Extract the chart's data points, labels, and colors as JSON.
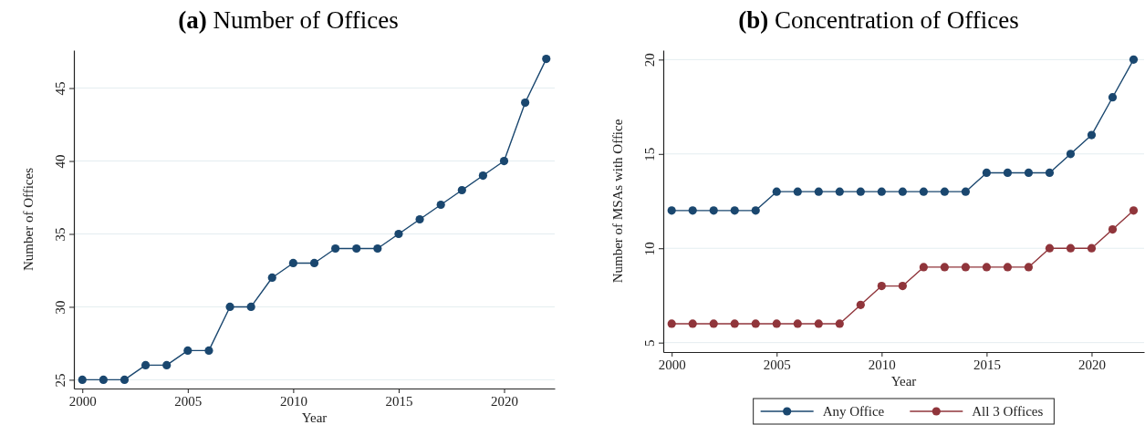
{
  "chart_data": [
    {
      "type": "line",
      "title": "(a) Number of Offices",
      "xlabel": "Year",
      "ylabel": "Number of Offices",
      "x": [
        2000,
        2001,
        2002,
        2003,
        2004,
        2005,
        2006,
        2007,
        2008,
        2009,
        2010,
        2011,
        2012,
        2013,
        2014,
        2015,
        2016,
        2017,
        2018,
        2019,
        2020,
        2021,
        2022
      ],
      "series": [
        {
          "color": "#1a476f",
          "values": [
            25,
            25,
            25,
            26,
            26,
            27,
            27,
            30,
            30,
            32,
            33,
            33,
            34,
            34,
            34,
            35,
            36,
            37,
            38,
            39,
            40,
            44,
            47
          ]
        }
      ],
      "xlim": [
        1999.6,
        2022.4
      ],
      "xticks": [
        2000,
        2005,
        2010,
        2015,
        2020
      ],
      "ylim": [
        24.4,
        47.6
      ],
      "yticks": [
        25,
        30,
        35,
        40,
        45
      ],
      "grid": "y",
      "marker": "circle",
      "line_style": "solid"
    },
    {
      "type": "line",
      "title": "(b) Concentration of Offices",
      "xlabel": "Year",
      "ylabel": "Number of MSAs with Office",
      "x": [
        2000,
        2001,
        2002,
        2003,
        2004,
        2005,
        2006,
        2007,
        2008,
        2009,
        2010,
        2011,
        2012,
        2013,
        2014,
        2015,
        2016,
        2017,
        2018,
        2019,
        2020,
        2021,
        2022
      ],
      "series": [
        {
          "name": "Any Office",
          "color": "#1a476f",
          "values": [
            12,
            12,
            12,
            12,
            12,
            13,
            13,
            13,
            13,
            13,
            13,
            13,
            13,
            13,
            13,
            14,
            14,
            14,
            14,
            15,
            16,
            18,
            20
          ]
        },
        {
          "name": "All 3 Offices",
          "color": "#90353b",
          "values": [
            6,
            6,
            6,
            6,
            6,
            6,
            6,
            6,
            6,
            7,
            8,
            8,
            9,
            9,
            9,
            9,
            9,
            9,
            10,
            10,
            10,
            11,
            12
          ]
        }
      ],
      "xlim": [
        1999.6,
        2022.5
      ],
      "xticks": [
        2000,
        2005,
        2010,
        2015,
        2020
      ],
      "ylim": [
        4.5,
        20.5
      ],
      "yticks": [
        5,
        10,
        15,
        20
      ],
      "grid": "y",
      "marker": "circle",
      "line_style": "solid",
      "legend": "bottom"
    }
  ]
}
